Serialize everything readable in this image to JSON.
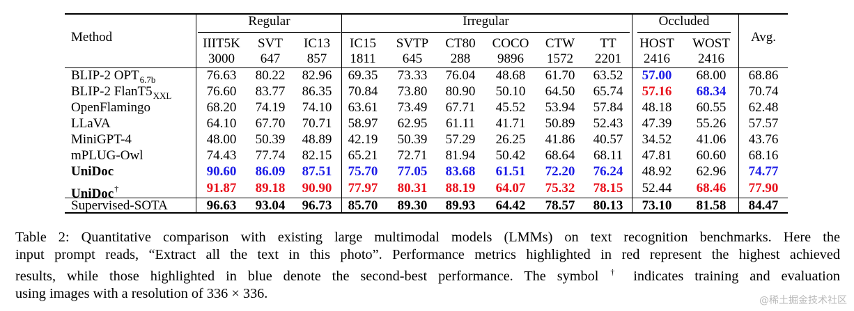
{
  "table": {
    "method_header": "Method",
    "groups": [
      "Regular",
      "Irregular",
      "Occluded"
    ],
    "avg_header": "Avg.",
    "columns": [
      {
        "name": "IIIT5K",
        "count": "3000"
      },
      {
        "name": "SVT",
        "count": "647"
      },
      {
        "name": "IC13",
        "count": "857"
      },
      {
        "name": "IC15",
        "count": "1811"
      },
      {
        "name": "SVTP",
        "count": "645"
      },
      {
        "name": "CT80",
        "count": "288"
      },
      {
        "name": "COCO",
        "count": "9896"
      },
      {
        "name": "CTW",
        "count": "1572"
      },
      {
        "name": "TT",
        "count": "2201"
      },
      {
        "name": "HOST",
        "count": "2416"
      },
      {
        "name": "WOST",
        "count": "2416"
      }
    ],
    "rows": [
      {
        "method": "BLIP-2 OPT",
        "sub": "6.7b",
        "sup": "",
        "bold": false,
        "values": [
          "76.63",
          "80.22",
          "82.96",
          "69.35",
          "73.33",
          "76.04",
          "48.68",
          "61.70",
          "63.52",
          "57.00",
          "68.00",
          "68.86"
        ],
        "styles": [
          "",
          "",
          "",
          "",
          "",
          "",
          "",
          "",
          "",
          "b blue",
          "",
          ""
        ]
      },
      {
        "method": "BLIP-2 FlanT5",
        "sub": "XXL",
        "sup": "",
        "bold": false,
        "values": [
          "76.60",
          "83.77",
          "86.35",
          "70.84",
          "73.80",
          "80.90",
          "50.10",
          "64.50",
          "65.74",
          "57.16",
          "68.34",
          "70.74"
        ],
        "styles": [
          "",
          "",
          "",
          "",
          "",
          "",
          "",
          "",
          "",
          "b red",
          "b blue",
          ""
        ]
      },
      {
        "method": "OpenFlamingo",
        "sub": "",
        "sup": "",
        "bold": false,
        "values": [
          "68.20",
          "74.19",
          "74.10",
          "63.61",
          "73.49",
          "67.71",
          "45.52",
          "53.94",
          "57.84",
          "48.18",
          "60.55",
          "62.48"
        ],
        "styles": [
          "",
          "",
          "",
          "",
          "",
          "",
          "",
          "",
          "",
          "",
          "",
          ""
        ]
      },
      {
        "method": "LLaVA",
        "sub": "",
        "sup": "",
        "bold": false,
        "values": [
          "64.10",
          "67.70",
          "70.71",
          "58.97",
          "62.95",
          "61.11",
          "41.71",
          "50.89",
          "52.43",
          "47.39",
          "55.26",
          "57.57"
        ],
        "styles": [
          "",
          "",
          "",
          "",
          "",
          "",
          "",
          "",
          "",
          "",
          "",
          ""
        ]
      },
      {
        "method": "MiniGPT-4",
        "sub": "",
        "sup": "",
        "bold": false,
        "values": [
          "48.00",
          "50.39",
          "48.89",
          "42.19",
          "50.39",
          "57.29",
          "26.25",
          "41.86",
          "40.57",
          "34.52",
          "41.06",
          "43.76"
        ],
        "styles": [
          "",
          "",
          "",
          "",
          "",
          "",
          "",
          "",
          "",
          "",
          "",
          ""
        ]
      },
      {
        "method": "mPLUG-Owl",
        "sub": "",
        "sup": "",
        "bold": false,
        "values": [
          "74.43",
          "77.74",
          "82.15",
          "65.21",
          "72.71",
          "81.94",
          "50.42",
          "68.64",
          "68.11",
          "47.81",
          "60.60",
          "68.16"
        ],
        "styles": [
          "",
          "",
          "",
          "",
          "",
          "",
          "",
          "",
          "",
          "",
          "",
          ""
        ]
      },
      {
        "method": "UniDoc",
        "sub": "",
        "sup": "",
        "bold": true,
        "values": [
          "90.60",
          "86.09",
          "87.51",
          "75.70",
          "77.05",
          "83.68",
          "61.51",
          "72.20",
          "76.24",
          "48.92",
          "62.96",
          "74.77"
        ],
        "styles": [
          "b blue",
          "b blue",
          "b blue",
          "b blue",
          "b blue",
          "b blue",
          "b blue",
          "b blue",
          "b blue",
          "",
          "",
          "b blue"
        ]
      },
      {
        "method": "UniDoc",
        "sub": "",
        "sup": "†",
        "bold": true,
        "values": [
          "91.87",
          "89.18",
          "90.90",
          "77.97",
          "80.31",
          "88.19",
          "64.07",
          "75.32",
          "78.15",
          "52.44",
          "68.46",
          "77.90"
        ],
        "styles": [
          "b red",
          "b red",
          "b red",
          "b red",
          "b red",
          "b red",
          "b red",
          "b red",
          "b red",
          "",
          "b red",
          "b red"
        ]
      },
      {
        "method": "Supervised-SOTA",
        "sub": "",
        "sup": "",
        "bold": false,
        "values": [
          "96.63",
          "93.04",
          "96.73",
          "85.70",
          "89.30",
          "89.93",
          "64.42",
          "78.57",
          "80.13",
          "73.10",
          "81.58",
          "84.47"
        ],
        "styles": [
          "b",
          "b",
          "b",
          "b",
          "b",
          "b",
          "b",
          "b",
          "b",
          "b",
          "b",
          "b"
        ]
      }
    ]
  },
  "caption": {
    "line1": "Table 2: Quantitative comparison with existing large multimodal models (LMMs) on text recognition benchmarks. Here the",
    "line2": "input prompt reads, “Extract all the text in this photo”. Performance metrics highlighted in red represent the highest achieved",
    "line3a": "results, while those highlighted in blue denote the second-best performance. The symbol",
    "line3_symbol": "†",
    "line3b": " indicates training and evaluation",
    "line4": "using images with a resolution of 336 × 336."
  },
  "watermark": "@稀土掘金技术社区"
}
